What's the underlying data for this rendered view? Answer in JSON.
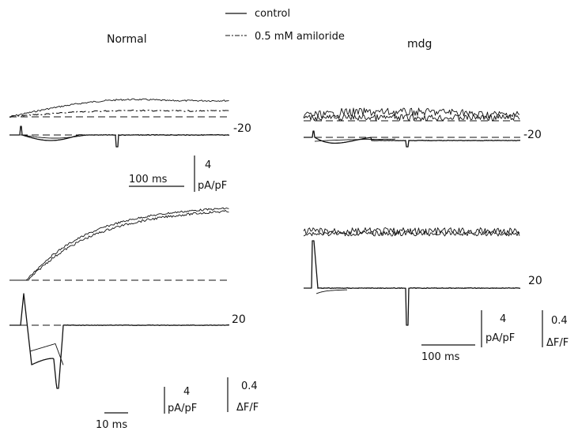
{
  "legend": {
    "control": "control",
    "amiloride": "0.5 mM amiloride"
  },
  "panels": {
    "normal_title": "Normal",
    "mdg_title": "mdg"
  },
  "voltages": {
    "normal_top": "-20",
    "normal_bottom": "20",
    "mdg_top": "-20",
    "mdg_bottom": "20"
  },
  "scales": {
    "normal_top_time": "100 ms",
    "normal_top_current_value": "4",
    "normal_top_current_unit": "pA/pF",
    "normal_bottom_time": "10 ms",
    "normal_bottom_current_value": "4",
    "normal_bottom_current_unit": "pA/pF",
    "normal_bottom_fluor_value": "0.4",
    "normal_bottom_fluor_unit": "ΔF/F",
    "mdg_time": "100 ms",
    "mdg_current_value": "4",
    "mdg_current_unit": "pA/pF",
    "mdg_fluor_value": "0.4",
    "mdg_fluor_unit": "ΔF/F"
  },
  "chart_data": [
    {
      "type": "line",
      "panel": "Normal, -20",
      "series": [
        {
          "name": "control"
        },
        {
          "name": "0.5 mM amiloride"
        }
      ]
    },
    {
      "type": "line",
      "panel": "Normal, 20",
      "series": [
        {
          "name": "control"
        },
        {
          "name": "0.5 mM amiloride"
        }
      ]
    },
    {
      "type": "line",
      "panel": "mdg, -20",
      "series": [
        {
          "name": "control"
        },
        {
          "name": "0.5 mM amiloride"
        }
      ]
    },
    {
      "type": "line",
      "panel": "mdg, 20",
      "series": [
        {
          "name": "control"
        },
        {
          "name": "0.5 mM amiloride"
        }
      ]
    }
  ]
}
